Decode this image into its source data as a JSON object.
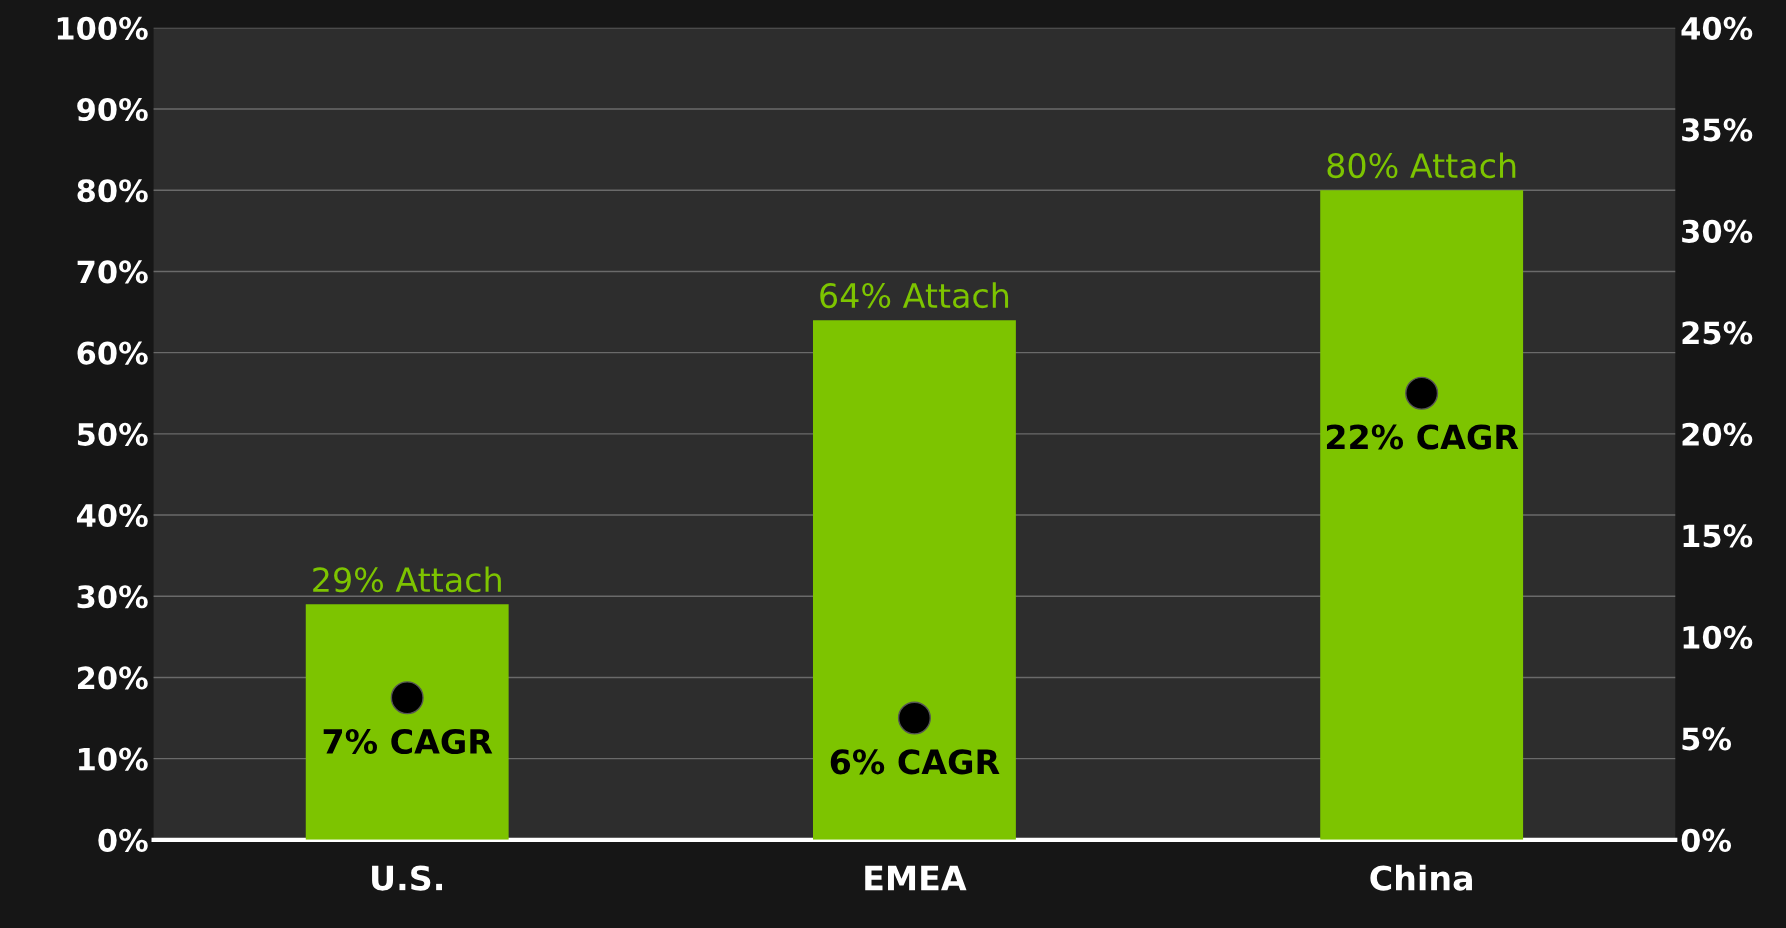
{
  "chart_data": {
    "type": "bar",
    "categories": [
      "U.S.",
      "EMEA",
      "China"
    ],
    "series": [
      {
        "color": "#7dc400",
        "values": [
          29,
          64,
          80
        ],
        "value_labels": [
          "29% Attach",
          "64% Attach",
          "80% Attach"
        ]
      },
      {
        "type": "scatter",
        "axis": "y2",
        "color": "#000000",
        "x": [
          "U.S.",
          "EMEA",
          "China"
        ],
        "values": [
          7,
          6,
          22
        ],
        "value_labels": [
          "7% CAGR",
          "6% CAGR",
          "22% CAGR"
        ]
      }
    ],
    "ylim": [
      0,
      100
    ],
    "yticks": [
      {
        "value": 0,
        "label": "0%"
      },
      {
        "value": 10,
        "label": "10%"
      },
      {
        "value": 20,
        "label": "20%"
      },
      {
        "value": 30,
        "label": "30%"
      },
      {
        "value": 40,
        "label": "40%"
      },
      {
        "value": 50,
        "label": "50%"
      },
      {
        "value": 60,
        "label": "60%"
      },
      {
        "value": 70,
        "label": "70%"
      },
      {
        "value": 80,
        "label": "80%"
      },
      {
        "value": 90,
        "label": "90%"
      },
      {
        "value": 100,
        "label": "100%"
      }
    ],
    "y2lim": [
      0,
      40
    ],
    "y2ticks": [
      {
        "value": 0,
        "label": "0%"
      },
      {
        "value": 5,
        "label": "5%"
      },
      {
        "value": 10,
        "label": "10%"
      },
      {
        "value": 15,
        "label": "15%"
      },
      {
        "value": 20,
        "label": "20%"
      },
      {
        "value": 25,
        "label": "25%"
      },
      {
        "value": 30,
        "label": "30%"
      },
      {
        "value": 35,
        "label": "35%"
      },
      {
        "value": 40,
        "label": "40%"
      }
    ],
    "grid": "y",
    "legend": false,
    "marker": "circle"
  }
}
